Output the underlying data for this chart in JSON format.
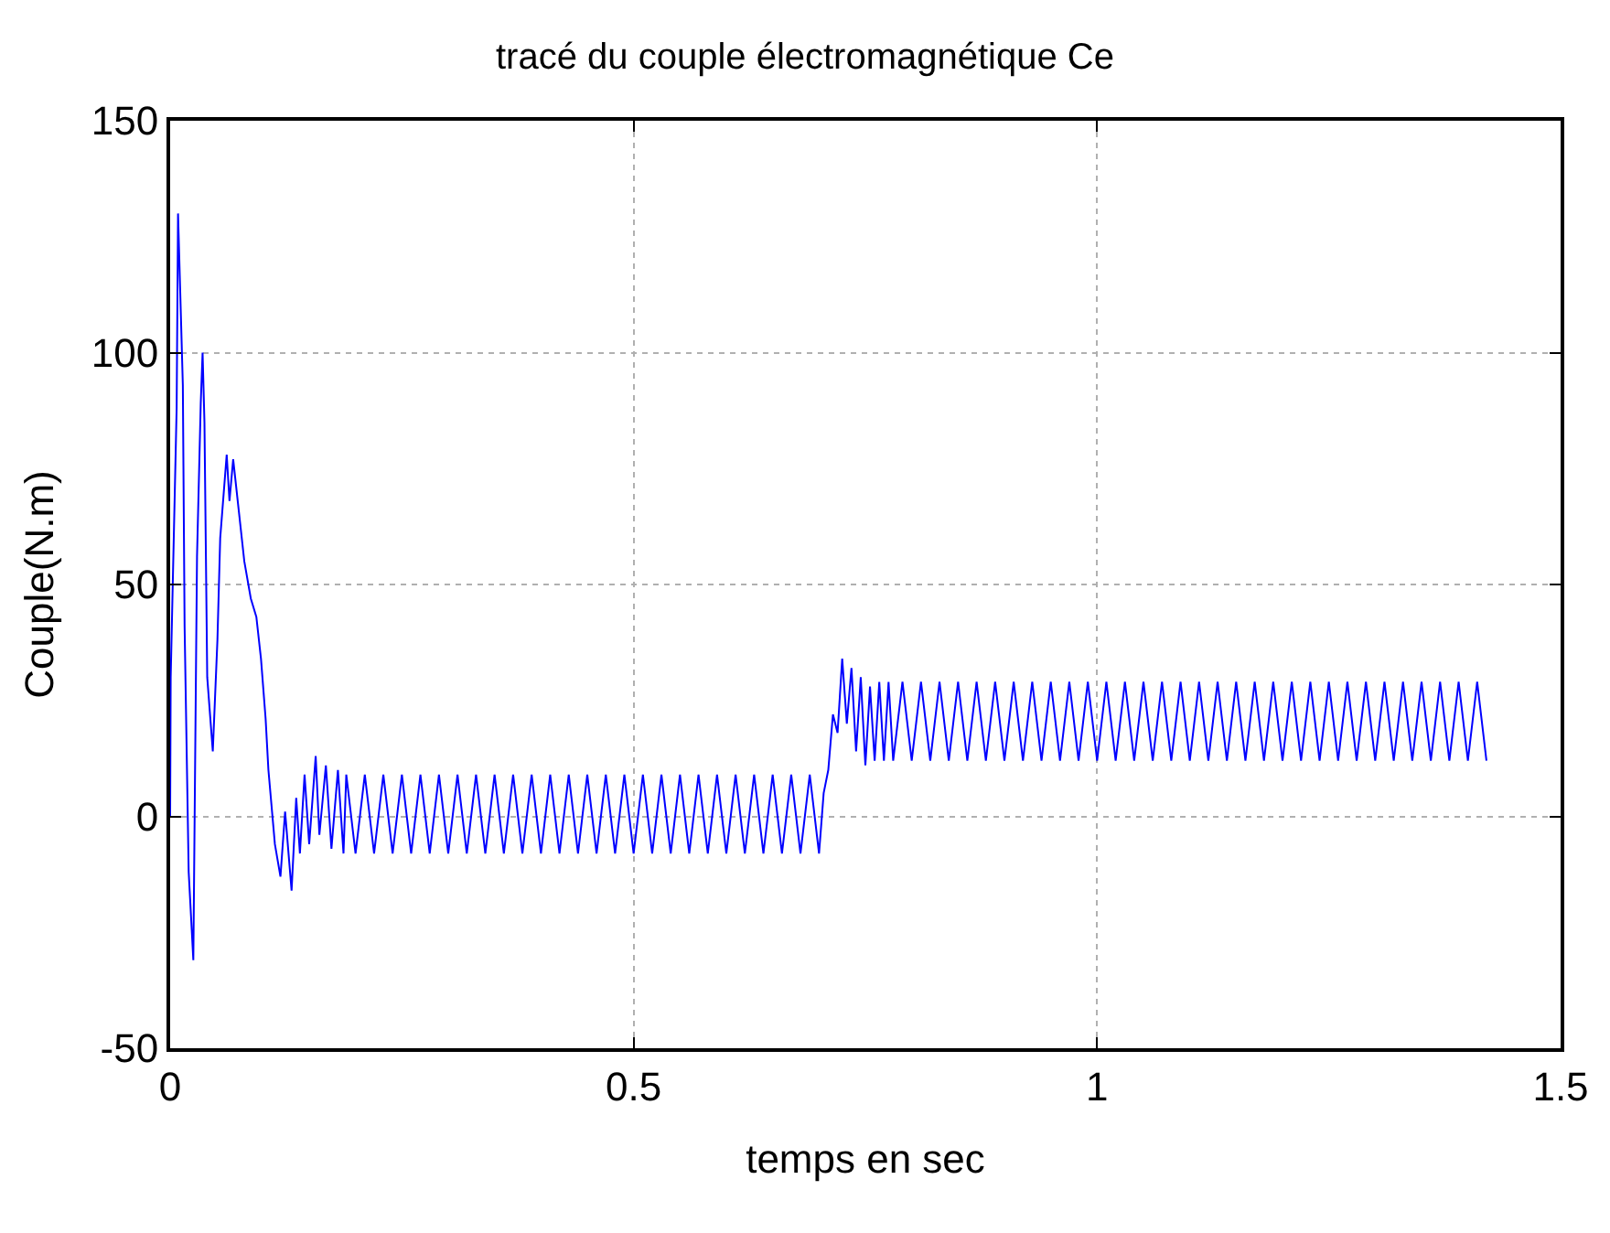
{
  "chart_data": {
    "type": "line",
    "title": "tracé du couple électromagnétique Ce",
    "xlabel": "temps en sec",
    "ylabel": "Couple(N.m)",
    "xlim": [
      0,
      1.5
    ],
    "xticks": [
      0,
      0.5,
      1,
      1.5
    ],
    "ylim": [
      -50,
      150
    ],
    "yticks": [
      -50,
      0,
      50,
      100,
      150
    ],
    "grid": true,
    "line_style": "solid",
    "marker": "none",
    "series": [
      {
        "color": "#0000ff",
        "x": [
          0,
          0.0006,
          0.007,
          0.0085,
          0.0137,
          0.0156,
          0.02,
          0.025,
          0.029,
          0.033,
          0.035,
          0.037,
          0.04,
          0.046,
          0.051,
          0.054,
          0.061,
          0.064,
          0.068,
          0.074,
          0.08,
          0.087,
          0.093,
          0.098,
          0.103,
          0.106,
          0.113,
          0.119,
          0.124,
          0.131,
          0.136,
          0.14,
          0.145,
          0.15,
          0.157,
          0.161,
          0.168,
          0.174,
          0.181,
          0.187,
          0.19,
          0.2,
          0.21,
          0.22,
          0.23,
          0.24,
          0.25,
          0.26,
          0.27,
          0.28,
          0.29,
          0.3,
          0.31,
          0.32,
          0.33,
          0.34,
          0.35,
          0.36,
          0.37,
          0.38,
          0.39,
          0.4,
          0.41,
          0.42,
          0.43,
          0.44,
          0.45,
          0.46,
          0.47,
          0.48,
          0.49,
          0.5,
          0.51,
          0.52,
          0.53,
          0.54,
          0.55,
          0.56,
          0.57,
          0.58,
          0.59,
          0.6,
          0.61,
          0.62,
          0.63,
          0.64,
          0.65,
          0.66,
          0.67,
          0.68,
          0.69,
          0.7,
          0.705,
          0.71,
          0.715,
          0.72,
          0.725,
          0.73,
          0.735,
          0.74,
          0.745,
          0.75,
          0.755,
          0.76,
          0.765,
          0.77,
          0.775,
          0.78,
          0.79,
          0.8,
          0.81,
          0.82,
          0.83,
          0.84,
          0.85,
          0.86,
          0.87,
          0.88,
          0.89,
          0.9,
          0.91,
          0.92,
          0.93,
          0.94,
          0.95,
          0.96,
          0.97,
          0.98,
          0.99,
          1,
          1.01,
          1.02,
          1.03,
          1.04,
          1.05,
          1.06,
          1.07,
          1.08,
          1.09,
          1.1,
          1.11,
          1.12,
          1.13,
          1.14,
          1.15,
          1.16,
          1.17,
          1.18,
          1.19,
          1.2,
          1.21,
          1.22,
          1.23,
          1.24,
          1.25,
          1.26,
          1.27,
          1.28,
          1.29,
          1.3,
          1.31,
          1.32,
          1.33,
          1.34,
          1.35,
          1.36,
          1.37,
          1.38,
          1.39,
          1.4,
          1.41,
          1.42
        ],
        "values": [
          0,
          30,
          88,
          130,
          93,
          41,
          -12,
          -31,
          56,
          89,
          100,
          85,
          30,
          14,
          38,
          60,
          78,
          68,
          77,
          66,
          55,
          47,
          43,
          34,
          21,
          10,
          -6,
          -13,
          1,
          -16,
          4,
          -8,
          9,
          -6,
          13,
          -4,
          11,
          -7,
          10,
          -8,
          9,
          -8,
          9,
          -8,
          9,
          -8,
          9,
          -8,
          9,
          -8,
          9,
          -8,
          9,
          -8,
          9,
          -8,
          9,
          -8,
          9,
          -8,
          9,
          -8,
          9,
          -8,
          9,
          -8,
          9,
          -8,
          9,
          -8,
          9,
          -8,
          9,
          -8,
          9,
          -8,
          9,
          -8,
          9,
          -8,
          9,
          -8,
          9,
          -8,
          9,
          -8,
          9,
          -8,
          9,
          -8,
          9,
          -8,
          5,
          10,
          22,
          18,
          34,
          20,
          32,
          14,
          30,
          11,
          28,
          12,
          29,
          12,
          29,
          12,
          29,
          12,
          29,
          12,
          29,
          12,
          29,
          12,
          29,
          12,
          29,
          12,
          29,
          12,
          29,
          12,
          29,
          12,
          29,
          12,
          29,
          12,
          29,
          12,
          29,
          12,
          29,
          12,
          29,
          12,
          29,
          12,
          29,
          12,
          29,
          12,
          29,
          12,
          29,
          12,
          29,
          12,
          29,
          12,
          29,
          12,
          29,
          12,
          29,
          12,
          29,
          12,
          29,
          12,
          29,
          12,
          29,
          12,
          29,
          12,
          29,
          12,
          29,
          12
        ]
      }
    ]
  }
}
